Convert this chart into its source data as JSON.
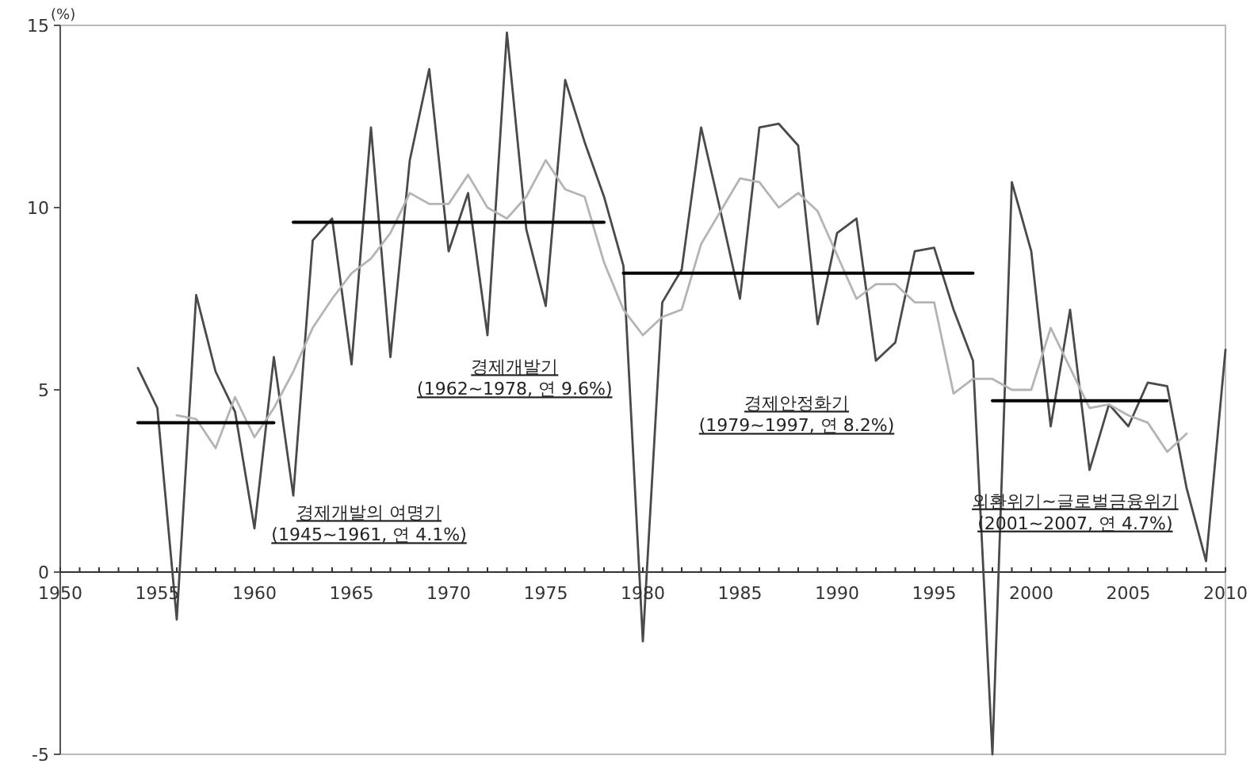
{
  "chart_data": {
    "type": "line",
    "ylabel": "(%)",
    "xlim": [
      1950,
      2010
    ],
    "ylim": [
      -5,
      15
    ],
    "yticks": [
      -5,
      0,
      5,
      10,
      15
    ],
    "xticks": [
      1950,
      {
        "value": 1951,
        "label": null
      },
      {
        "value": 1952,
        "label": null
      },
      {
        "value": 1953,
        "label": null
      },
      {
        "value": 1954,
        "label": null
      },
      1955,
      {
        "value": 1956,
        "label": null
      },
      {
        "value": 1957,
        "label": null
      },
      {
        "value": 1958,
        "label": null
      },
      {
        "value": 1959,
        "label": null
      },
      1960,
      {
        "value": 1961,
        "label": null
      },
      {
        "value": 1962,
        "label": null
      },
      {
        "value": 1963,
        "label": null
      },
      {
        "value": 1964,
        "label": null
      },
      1965,
      {
        "value": 1966,
        "label": null
      },
      {
        "value": 1967,
        "label": null
      },
      {
        "value": 1968,
        "label": null
      },
      {
        "value": 1969,
        "label": null
      },
      1970,
      {
        "value": 1971,
        "label": null
      },
      {
        "value": 1972,
        "label": null
      },
      {
        "value": 1973,
        "label": null
      },
      {
        "value": 1974,
        "label": null
      },
      1975,
      {
        "value": 1976,
        "label": null
      },
      {
        "value": 1977,
        "label": null
      },
      {
        "value": 1978,
        "label": null
      },
      {
        "value": 1979,
        "label": null
      },
      1980,
      {
        "value": 1981,
        "label": null
      },
      {
        "value": 1982,
        "label": null
      },
      {
        "value": 1983,
        "label": null
      },
      {
        "value": 1984,
        "label": null
      },
      1985,
      {
        "value": 1986,
        "label": null
      },
      {
        "value": 1987,
        "label": null
      },
      {
        "value": 1988,
        "label": null
      },
      {
        "value": 1989,
        "label": null
      },
      1990,
      {
        "value": 1991,
        "label": null
      },
      {
        "value": 1992,
        "label": null
      },
      {
        "value": 1993,
        "label": null
      },
      {
        "value": 1994,
        "label": null
      },
      1995,
      {
        "value": 1996,
        "label": null
      },
      {
        "value": 1997,
        "label": null
      },
      {
        "value": 1998,
        "label": null
      },
      {
        "value": 1999,
        "label": null
      },
      2000,
      {
        "value": 2001,
        "label": null
      },
      {
        "value": 2002,
        "label": null
      },
      {
        "value": 2003,
        "label": null
      },
      {
        "value": 2004,
        "label": null
      },
      2005,
      {
        "value": 2006,
        "label": null
      },
      {
        "value": 2007,
        "label": null
      },
      {
        "value": 2008,
        "label": null
      },
      {
        "value": 2009,
        "label": null
      },
      2010
    ],
    "series": [
      {
        "color": "#4a4a4a",
        "x": [
          1954,
          1955,
          1956,
          1957,
          1958,
          1959,
          1960,
          1961,
          1962,
          1963,
          1964,
          1965,
          1966,
          1967,
          1968,
          1969,
          1970,
          1971,
          1972,
          1973,
          1974,
          1975,
          1976,
          1977,
          1978,
          1979,
          1980,
          1981,
          1982,
          1983,
          1984,
          1985,
          1986,
          1987,
          1988,
          1989,
          1990,
          1991,
          1992,
          1993,
          1994,
          1995,
          1996,
          1997,
          1998,
          1999,
          2000,
          2001,
          2002,
          2003,
          2004,
          2005,
          2006,
          2007,
          2008,
          2009,
          2010
        ],
        "values": [
          5.6,
          4.5,
          -1.3,
          7.6,
          5.5,
          4.4,
          1.2,
          5.9,
          2.1,
          9.1,
          9.7,
          5.7,
          12.2,
          5.9,
          11.3,
          13.8,
          8.8,
          10.4,
          6.5,
          14.8,
          9.4,
          7.3,
          13.5,
          11.8,
          10.3,
          8.4,
          -1.9,
          7.4,
          8.3,
          12.2,
          9.9,
          7.5,
          12.2,
          12.3,
          11.7,
          6.8,
          9.3,
          9.7,
          5.8,
          6.3,
          8.8,
          8.9,
          7.2,
          5.8,
          -5.0,
          10.7,
          8.8,
          4.0,
          7.2,
          2.8,
          4.6,
          4.0,
          5.2,
          5.1,
          2.3,
          0.3,
          6.1
        ]
      },
      {
        "color": "#b4b4b4",
        "x": [
          1956,
          1957,
          1958,
          1959,
          1960,
          1961,
          1962,
          1963,
          1964,
          1965,
          1966,
          1967,
          1968,
          1969,
          1970,
          1971,
          1972,
          1973,
          1974,
          1975,
          1976,
          1977,
          1978,
          1979,
          1980,
          1981,
          1982,
          1983,
          1984,
          1985,
          1986,
          1987,
          1988,
          1989,
          1990,
          1991,
          1992,
          1993,
          1994,
          1995,
          1996,
          1997,
          1998,
          1999,
          2000,
          2001,
          2002,
          2003,
          2004,
          2005,
          2006,
          2007,
          2008
        ],
        "values": [
          4.3,
          4.2,
          3.4,
          4.8,
          3.7,
          4.5,
          5.5,
          6.7,
          7.5,
          8.2,
          8.6,
          9.3,
          10.4,
          10.1,
          10.1,
          10.9,
          10.0,
          9.7,
          10.3,
          11.3,
          10.5,
          10.3,
          8.5,
          7.2,
          6.5,
          7.0,
          7.2,
          9.0,
          9.9,
          10.8,
          10.7,
          10.0,
          10.4,
          9.9,
          8.7,
          7.5,
          7.9,
          7.9,
          7.4,
          7.4,
          4.9,
          5.3,
          5.3,
          5.0,
          5.0,
          6.7,
          5.6,
          4.5,
          4.6,
          4.3,
          4.1,
          3.3,
          3.8
        ]
      },
      {
        "type": "line",
        "color": "#000000",
        "x": [
          1954,
          1961
        ],
        "values": [
          4.1,
          4.1
        ]
      },
      {
        "type": "line",
        "color": "#000000",
        "x": [
          1962,
          1978
        ],
        "values": [
          9.6,
          9.6
        ]
      },
      {
        "type": "line",
        "color": "#000000",
        "x": [
          1979,
          1997
        ],
        "values": [
          8.2,
          8.2
        ]
      },
      {
        "type": "line",
        "color": "#000000",
        "x": [
          1998,
          2007
        ],
        "values": [
          4.7,
          4.7
        ]
      }
    ],
    "annotations": [
      "경제개발의 여명기\n(1945~1961, 연 4.1%)",
      "경제개발기\n(1962~1978, 연 9.6%)",
      "경제안정화기\n(1979~1997, 연 8.2%)",
      "외환위기~글로벌금융위기\n(2001~2007, 연 4.7%)"
    ]
  }
}
